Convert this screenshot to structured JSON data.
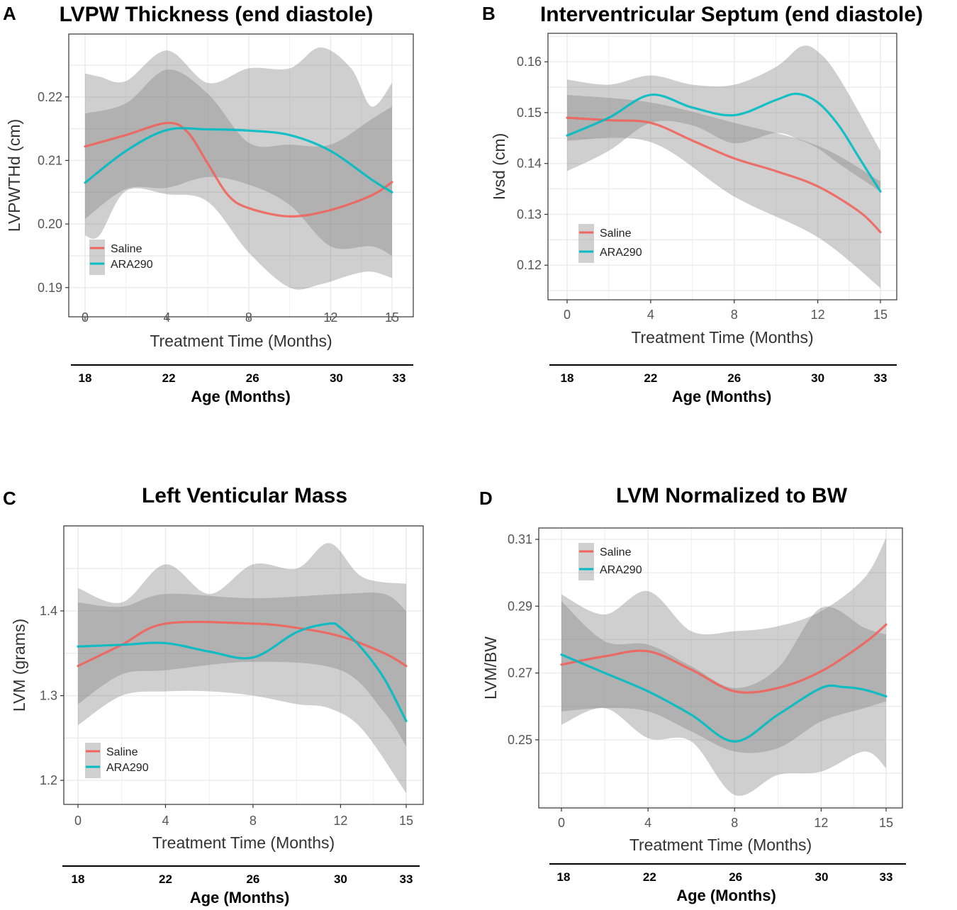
{
  "colors": {
    "saline": "#f0645c",
    "ara290": "#00bcc4",
    "ribbon": "#808080"
  },
  "chart_data": [
    {
      "type": "line",
      "panel_letter": "A",
      "title": "LVPW Thickness (end diastole)",
      "xlabel": "Treatment Time (Months)",
      "ylabel": "LVPWTHd (cm)",
      "xticks": [
        0,
        4,
        8,
        12,
        15
      ],
      "yticks": [
        0.19,
        0.2,
        0.21,
        0.22
      ],
      "ytick_labels": [
        "0.19",
        "0.20",
        "0.21",
        "0.22"
      ],
      "ylim": [
        0.1854,
        0.2299
      ],
      "secondary_xlabel": "Age (Months)",
      "secondary_xticks": [
        "18",
        "22",
        "26",
        "30",
        "33"
      ],
      "legend": {
        "placement": "bottom-left",
        "entries": [
          "Saline",
          "ARA290"
        ]
      },
      "grid": true,
      "series": [
        {
          "name": "Saline",
          "x": [
            0,
            2,
            4,
            5,
            6,
            7,
            8,
            10,
            12,
            14,
            15
          ],
          "y": [
            0.2122,
            0.214,
            0.2159,
            0.2145,
            0.2095,
            0.2045,
            0.2025,
            0.2012,
            0.2022,
            0.2045,
            0.2066
          ]
        },
        {
          "name": "ARA290",
          "x": [
            0,
            2,
            4,
            6,
            8,
            10,
            12,
            14,
            15
          ],
          "y": [
            0.2065,
            0.2115,
            0.2148,
            0.2149,
            0.2147,
            0.214,
            0.2115,
            0.207,
            0.205
          ]
        }
      ],
      "ribbons": [
        {
          "x": [
            0,
            0.7,
            2,
            4,
            6,
            8,
            10,
            11.5,
            13,
            14,
            15
          ],
          "upper": [
            0.2237,
            0.2232,
            0.2225,
            0.2273,
            0.2222,
            0.2245,
            0.2245,
            0.2278,
            0.2245,
            0.2185,
            0.2222
          ],
          "lower": [
            0.1982,
            0.1982,
            0.2052,
            0.2047,
            0.2035,
            0.1955,
            0.19,
            0.1905,
            0.192,
            0.1925,
            0.1915
          ]
        },
        {
          "x": [
            0,
            2,
            4,
            6,
            8,
            10,
            12,
            14,
            15
          ],
          "upper": [
            0.2174,
            0.219,
            0.2243,
            0.2205,
            0.2128,
            0.2125,
            0.2125,
            0.2165,
            0.2185
          ],
          "lower": [
            0.2008,
            0.2055,
            0.2057,
            0.2074,
            0.2062,
            0.203,
            0.1965,
            0.1965,
            0.195
          ]
        }
      ]
    },
    {
      "type": "line",
      "panel_letter": "B",
      "title": "Interventricular Septum (end diastole)",
      "xlabel": "Treatment Time (Months)",
      "ylabel": "Ivsd (cm)",
      "xticks": [
        0,
        4,
        8,
        12,
        15
      ],
      "yticks": [
        0.12,
        0.13,
        0.14,
        0.15,
        0.16
      ],
      "ytick_labels": [
        "0.12",
        "0.13",
        "0.14",
        "0.15",
        "0.16"
      ],
      "ylim": [
        0.1132,
        0.1656
      ],
      "secondary_xlabel": "Age (Months)",
      "secondary_xticks": [
        "18",
        "22",
        "26",
        "30",
        "33"
      ],
      "legend": {
        "placement": "left",
        "entries": [
          "Saline",
          "ARA290"
        ]
      },
      "grid": true,
      "series": [
        {
          "name": "Saline",
          "x": [
            0,
            2,
            4,
            6,
            8,
            10,
            12,
            14,
            15
          ],
          "y": [
            0.149,
            0.1485,
            0.148,
            0.1445,
            0.141,
            0.1385,
            0.1355,
            0.1305,
            0.1265
          ]
        },
        {
          "name": "ARA290",
          "x": [
            0,
            2,
            4,
            6,
            8,
            10,
            11,
            12,
            13,
            14,
            15
          ],
          "y": [
            0.1455,
            0.149,
            0.1535,
            0.151,
            0.1495,
            0.1525,
            0.1537,
            0.152,
            0.1475,
            0.141,
            0.1345
          ]
        }
      ],
      "ribbons": [
        {
          "x": [
            0,
            4,
            8,
            12,
            15
          ],
          "upper": [
            0.1535,
            0.152,
            0.148,
            0.1435,
            0.1365
          ],
          "lower": [
            0.1445,
            0.1442,
            0.1335,
            0.1255,
            0.1155
          ]
        },
        {
          "x": [
            0,
            2,
            4,
            6,
            8,
            10,
            11.2,
            12,
            13,
            15
          ],
          "upper": [
            0.1565,
            0.1555,
            0.1573,
            0.1555,
            0.1555,
            0.159,
            0.163,
            0.162,
            0.157,
            0.1425
          ],
          "lower": [
            0.1385,
            0.1425,
            0.148,
            0.1475,
            0.144,
            0.146,
            0.1445,
            0.143,
            0.14,
            0.1345
          ]
        }
      ]
    },
    {
      "type": "line",
      "panel_letter": "C",
      "title": "Left Venticular Mass",
      "xlabel": "Treatment Time (Months)",
      "ylabel": "LVM (grams)",
      "xticks": [
        0,
        4,
        8,
        12,
        15
      ],
      "yticks": [
        1.2,
        1.3,
        1.4
      ],
      "ytick_labels": [
        "1.2",
        "1.3",
        "1.4"
      ],
      "ylim": [
        1.1716,
        1.5004
      ],
      "secondary_xlabel": "Age (Months)",
      "secondary_xticks": [
        "18",
        "22",
        "26",
        "30",
        "33"
      ],
      "legend": {
        "placement": "bottom-left",
        "entries": [
          "Saline",
          "ARA290"
        ]
      },
      "grid": true,
      "series": [
        {
          "name": "Saline",
          "x": [
            0,
            2,
            4,
            8,
            10,
            12,
            14,
            15
          ],
          "y": [
            1.335,
            1.36,
            1.385,
            1.385,
            1.38,
            1.37,
            1.35,
            1.335
          ]
        },
        {
          "name": "ARA290",
          "x": [
            0,
            2,
            4,
            6,
            8,
            10,
            11.5,
            12,
            13,
            14,
            15
          ],
          "y": [
            1.358,
            1.36,
            1.362,
            1.352,
            1.345,
            1.375,
            1.385,
            1.38,
            1.355,
            1.32,
            1.27
          ]
        }
      ],
      "ribbons": [
        {
          "x": [
            0,
            2,
            4,
            6,
            8,
            10,
            11.5,
            13,
            15
          ],
          "upper": [
            1.427,
            1.41,
            1.455,
            1.42,
            1.455,
            1.45,
            1.48,
            1.44,
            1.432
          ],
          "lower": [
            1.265,
            1.3,
            1.305,
            1.305,
            1.3,
            1.29,
            1.285,
            1.26,
            1.185
          ]
        },
        {
          "x": [
            0,
            2,
            4,
            8,
            12,
            14,
            15
          ],
          "upper": [
            1.41,
            1.405,
            1.42,
            1.415,
            1.42,
            1.42,
            1.4
          ],
          "lower": [
            1.29,
            1.325,
            1.33,
            1.34,
            1.33,
            1.28,
            1.24
          ]
        }
      ]
    },
    {
      "type": "line",
      "panel_letter": "D",
      "title": "LVM Normalized to BW",
      "xlabel": "Treatment Time (Months)",
      "ylabel": "LVM/BW",
      "xticks": [
        0,
        4,
        8,
        12,
        15
      ],
      "yticks": [
        0.25,
        0.27,
        0.29,
        0.31
      ],
      "ytick_labels": [
        "0.25",
        "0.27",
        "0.29",
        "0.31"
      ],
      "ylim": [
        0.2296,
        0.3134
      ],
      "secondary_xlabel": "Age (Months)",
      "secondary_xticks": [
        "18",
        "22",
        "26",
        "30",
        "33"
      ],
      "legend": {
        "placement": "top-left",
        "entries": [
          "Saline",
          "ARA290"
        ]
      },
      "grid": true,
      "series": [
        {
          "name": "Saline",
          "x": [
            0,
            2,
            4,
            6,
            8,
            10,
            12,
            14,
            15
          ],
          "y": [
            0.2725,
            0.275,
            0.2765,
            0.271,
            0.2645,
            0.2655,
            0.2705,
            0.279,
            0.2845
          ]
        },
        {
          "name": "ARA290",
          "x": [
            0,
            2,
            4,
            6,
            8,
            10,
            12,
            13,
            14,
            15
          ],
          "y": [
            0.2755,
            0.27,
            0.2645,
            0.2575,
            0.2495,
            0.2575,
            0.2655,
            0.2658,
            0.265,
            0.263
          ]
        }
      ],
      "ribbons": [
        {
          "x": [
            0,
            2,
            4,
            6,
            8,
            10,
            12,
            14,
            15
          ],
          "upper": [
            0.2935,
            0.2875,
            0.2945,
            0.2825,
            0.2825,
            0.284,
            0.2885,
            0.2985,
            0.3105
          ],
          "lower": [
            0.2545,
            0.2595,
            0.2505,
            0.2495,
            0.2335,
            0.2395,
            0.2405,
            0.2465,
            0.2415
          ]
        },
        {
          "x": [
            0,
            2,
            4,
            6,
            8,
            10,
            12,
            14,
            15
          ],
          "upper": [
            0.2915,
            0.2795,
            0.2785,
            0.272,
            0.2655,
            0.2715,
            0.2895,
            0.2835,
            0.2815
          ],
          "lower": [
            0.2585,
            0.2595,
            0.2585,
            0.2525,
            0.2465,
            0.2475,
            0.2555,
            0.2595,
            0.2615
          ]
        }
      ]
    }
  ]
}
